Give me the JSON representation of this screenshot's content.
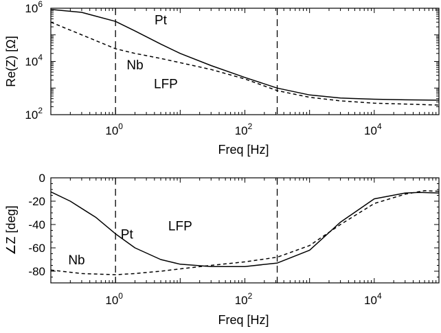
{
  "chart_data": [
    {
      "type": "line",
      "xlabel": "Freq [Hz]",
      "ylabel": "Re(Z) [Ω]",
      "xscale": "log",
      "yscale": "log",
      "xlim": [
        0.1,
        100000
      ],
      "ylim": [
        100,
        1000000
      ],
      "x_ticks": [
        {
          "base": "10",
          "exp": "0"
        },
        {
          "base": "10",
          "exp": "2"
        },
        {
          "base": "10",
          "exp": "4"
        }
      ],
      "y_ticks": [
        {
          "base": "10",
          "exp": "2"
        },
        {
          "base": "10",
          "exp": "4"
        },
        {
          "base": "10",
          "exp": "6"
        }
      ],
      "vlines": [
        1,
        316
      ],
      "series": [
        {
          "style": "solid",
          "x": [
            0.1,
            0.3,
            1,
            2,
            5,
            10,
            30,
            100,
            316,
            1000,
            3000,
            10000,
            30000,
            100000
          ],
          "y": [
            900000,
            700000,
            320000,
            140000,
            45000,
            20000,
            7000,
            2500,
            1000,
            550,
            420,
            380,
            360,
            350
          ]
        },
        {
          "style": "dashed",
          "x": [
            0.1,
            0.2,
            0.5,
            1,
            2,
            5,
            10,
            30,
            100,
            316,
            1000,
            3000,
            10000,
            100000
          ],
          "y": [
            300000,
            150000,
            60000,
            30000,
            20000,
            13000,
            9000,
            5000,
            2200,
            800,
            450,
            330,
            270,
            230
          ]
        }
      ],
      "annotations": [
        {
          "text": "Pt",
          "x": 5,
          "y": 250000
        },
        {
          "text": "Nb",
          "x": 2,
          "y": 5000
        },
        {
          "text": "LFP",
          "x": 6,
          "y": 1000
        }
      ]
    },
    {
      "type": "line",
      "xlabel": "Freq [Hz]",
      "ylabel": "∠Z [deg]",
      "xscale": "log",
      "xlim": [
        0.1,
        100000
      ],
      "ylim": [
        -90,
        0
      ],
      "x_ticks": [
        {
          "base": "10",
          "exp": "0"
        },
        {
          "base": "10",
          "exp": "2"
        },
        {
          "base": "10",
          "exp": "4"
        }
      ],
      "y_ticks": [
        "0",
        "-20",
        "-40",
        "-60",
        "-80"
      ],
      "y_tick_values": [
        0,
        -20,
        -40,
        -60,
        -80
      ],
      "vlines": [
        1,
        316
      ],
      "series": [
        {
          "style": "solid",
          "x": [
            0.1,
            0.2,
            0.5,
            1,
            2,
            5,
            10,
            30,
            100,
            316,
            1000,
            3000,
            10000,
            30000,
            50000,
            100000
          ],
          "y": [
            -12,
            -20,
            -34,
            -48,
            -60,
            -70,
            -74,
            -76,
            -76,
            -73,
            -62,
            -38,
            -18,
            -13,
            -12.5,
            -13
          ]
        },
        {
          "style": "dashed",
          "x": [
            0.1,
            0.3,
            1,
            2,
            5,
            10,
            30,
            100,
            316,
            1000,
            3000,
            10000,
            30000,
            60000,
            100000
          ],
          "y": [
            -79,
            -82,
            -83,
            -82,
            -80,
            -78,
            -75,
            -72,
            -68,
            -58,
            -40,
            -22,
            -14,
            -11,
            -11.5
          ]
        }
      ],
      "annotations": [
        {
          "text": "Pt",
          "x": 1.5,
          "y": -52
        },
        {
          "text": "LFP",
          "x": 10,
          "y": -45
        },
        {
          "text": "Nb",
          "x": 0.25,
          "y": -74
        }
      ]
    }
  ]
}
